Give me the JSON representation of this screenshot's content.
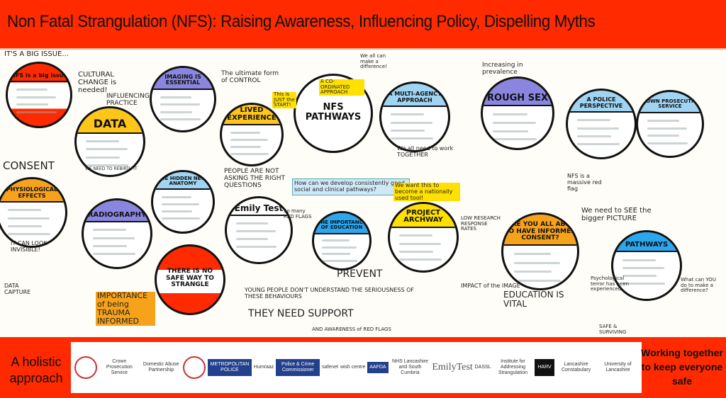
{
  "header": {
    "title": "Non Fatal Strangulation (NFS): Raising Awareness, Influencing Policy, Dispelling Myths"
  },
  "colors": {
    "banner": "#ff2a00",
    "yellow": "#ffd21a",
    "blue": "#6ec3f0",
    "purple": "#8a86e0",
    "orange": "#f7a21b",
    "red": "#ff2a00"
  },
  "poster": {
    "circles": [
      {
        "id": "big-issue",
        "heading": "NFS is a big issue",
        "color": "#ff2a00"
      },
      {
        "id": "data",
        "heading": "DATA",
        "color": "#ffc61a"
      },
      {
        "id": "imaging",
        "heading": "IMAGING IS ESSENTIAL",
        "color": "#8a86e0"
      },
      {
        "id": "lived-experience",
        "heading": "LIVED EXPERIENCE",
        "color": "#ffc61a"
      },
      {
        "id": "nfs-pathways",
        "heading": "NFS PATHWAYS",
        "color": "#ffffff"
      },
      {
        "id": "multi-agency",
        "heading": "A MULTI-AGENCY APPROACH",
        "color": "#9fd4f3"
      },
      {
        "id": "rough-sex",
        "heading": "ROUGH SEX",
        "color": "#8a86e0"
      },
      {
        "id": "police",
        "heading": "A POLICE PERSPECTIVE",
        "color": "#9fd4f3"
      },
      {
        "id": "cps",
        "heading": "CROWN PROSECUTION SERVICE",
        "color": "#9fd4f3"
      },
      {
        "id": "physiological",
        "heading": "PHYSIOLOGICAL EFFECTS",
        "color": "#f7a21b"
      },
      {
        "id": "hidden-anatomy",
        "heading": "THE HIDDEN NECK ANATOMY",
        "color": "#9fd4f3"
      },
      {
        "id": "radiography",
        "heading": "RADIOGRAPHY",
        "color": "#8a86e0"
      },
      {
        "id": "no-safe-way",
        "heading": "THERE IS NO SAFE WAY TO STRANGLE",
        "color": "#ff2a00"
      },
      {
        "id": "emily-test",
        "heading": "Emily Test",
        "color": "#ffffff"
      },
      {
        "id": "education",
        "heading": "THE IMPORTANCE OF EDUCATION",
        "color": "#2aa7ee"
      },
      {
        "id": "archway",
        "heading": "PROJECT ARCHWAY",
        "color": "#ffe000"
      },
      {
        "id": "informed-consent",
        "heading": "ARE YOU ALL ABLE TO HAVE INFORMED CONSENT?",
        "color": "#f7a21b"
      },
      {
        "id": "pathways",
        "heading": "PATHWAYS",
        "color": "#2aa7ee"
      }
    ],
    "notes": [
      {
        "id": "its-a-big-issue",
        "text": "IT'S A BIG ISSUE..."
      },
      {
        "id": "cultural-change",
        "text": "CULTURAL CHANGE is needed!"
      },
      {
        "id": "influencing-practice",
        "text": "INFLUENCING PRACTICE"
      },
      {
        "id": "ultimate-control",
        "text": "The ultimate form of CONTROL"
      },
      {
        "id": "coordinated",
        "text": "A CO-ORDINATED APPROACH"
      },
      {
        "id": "just-the-start",
        "text": "This is JUST the START!"
      },
      {
        "id": "make-difference",
        "text": "We all can make a difference!"
      },
      {
        "id": "consent",
        "text": "CONSENT"
      },
      {
        "id": "we-need-to-rebirth",
        "text": "WE NEED TO REBIRTH IT"
      },
      {
        "id": "pathways-question",
        "text": "How can we develop consistently good social and clinical pathways?"
      },
      {
        "id": "national-tool",
        "text": "We want this to become a nationally used tool!"
      },
      {
        "id": "increasing",
        "text": "Increasing in prevalence"
      },
      {
        "id": "work-together",
        "text": "We all need to work TOGETHER"
      },
      {
        "id": "right-questions",
        "text": "PEOPLE ARE NOT ASKING THE RIGHT QUESTIONS"
      },
      {
        "id": "red-flags",
        "text": "So many RED FLAGS"
      },
      {
        "id": "look-invisible",
        "text": "IT CAN LOOK INVISIBLE!"
      },
      {
        "id": "data-capture",
        "text": "DATA CAPTURE"
      },
      {
        "id": "trauma-informed",
        "text": "IMPORTANCE of being TRAUMA INFORMED"
      },
      {
        "id": "young-people",
        "text": "YOUNG PEOPLE DON'T UNDERSTAND THE SERIOUSNESS OF THESE BEHAVIOURS"
      },
      {
        "id": "support",
        "text": "THEY NEED SUPPORT"
      },
      {
        "id": "awareness-red-flags",
        "text": "AND AWARENESS of RED FLAGS"
      },
      {
        "id": "prevent",
        "text": "PREVENT"
      },
      {
        "id": "low-response",
        "text": "LOW RESEARCH RESPONSE RATES"
      },
      {
        "id": "impact-image",
        "text": "IMPACT of the IMAGE"
      },
      {
        "id": "education-vital",
        "text": "EDUCATION IS VITAL"
      },
      {
        "id": "bigger-picture",
        "text": "We need to SEE the bigger PICTURE"
      },
      {
        "id": "massive-red-flag",
        "text": "NFS is a massive red flag"
      },
      {
        "id": "psych-terror",
        "text": "Psychological terror has been experienced"
      },
      {
        "id": "what-can-you-do",
        "text": "What can YOU do to make a difference?"
      },
      {
        "id": "safe-surviving",
        "text": "SAFE & SURVIVING"
      }
    ]
  },
  "footer": {
    "left_text": "A holistic approach",
    "right_text": "Working together to keep everyone safe",
    "logos": [
      {
        "name": "seal-logo",
        "label": ""
      },
      {
        "name": "cps-logo",
        "label": "Crown Prosecution Service"
      },
      {
        "name": "domestic-abuse-logo",
        "label": "Domestic Abuse Partnership"
      },
      {
        "name": "rose-logo",
        "label": ""
      },
      {
        "name": "met-police-logo",
        "label": "METROPOLITAN POLICE"
      },
      {
        "name": "humraaz-logo",
        "label": "Humraaz"
      },
      {
        "name": "commissioner-logo",
        "label": "Police & Crime Commissioner"
      },
      {
        "name": "safenet-logo",
        "label": "safenet"
      },
      {
        "name": "wish-centre-logo",
        "label": "wish centre"
      },
      {
        "name": "aafda-logo",
        "label": "AAFDA"
      },
      {
        "name": "nhs-logo",
        "label": "NHS Lancashire and South Cumbria"
      },
      {
        "name": "emily-test-logo",
        "label": "EmilyTest"
      },
      {
        "name": "dassl-logo",
        "label": "DASSL"
      },
      {
        "name": "iafs-logo",
        "label": "Institute for Addressing Strangulation"
      },
      {
        "name": "harv-logo",
        "label": "HARV"
      },
      {
        "name": "lancashire-constabulary-logo",
        "label": "Lancashire Constabulary"
      },
      {
        "name": "uclan-logo",
        "label": "University of Lancashire"
      }
    ]
  }
}
